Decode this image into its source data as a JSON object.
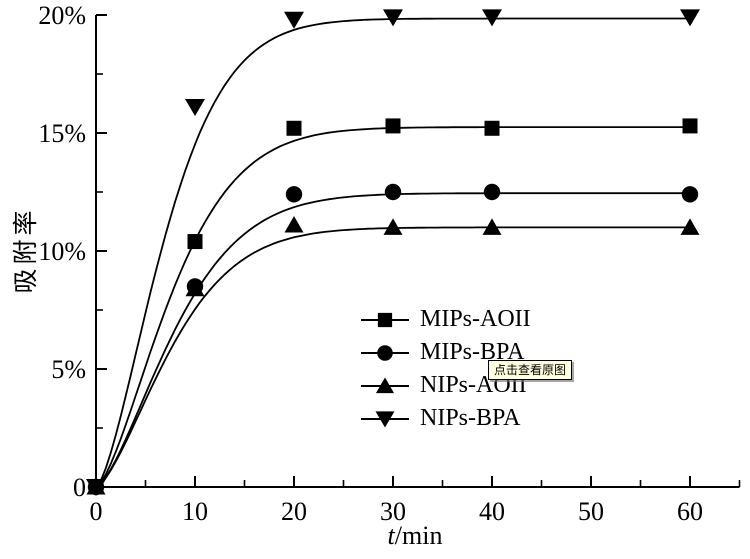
{
  "overlay": {
    "tooltip_text": "点击查看原图",
    "tooltip_bg": "#ffffe1"
  },
  "chart_data": {
    "type": "line",
    "title": "",
    "ylabel": "吸附率",
    "xlabel": "t/min",
    "xlabel_italic": "t",
    "xlabel_rest": "/min",
    "xlim": [
      0,
      65
    ],
    "ylim": [
      0,
      20
    ],
    "grid": false,
    "legend_position": "center-right",
    "line_color": "#000000",
    "background_color": "#ffffff",
    "x_major_ticks": [
      0,
      10,
      20,
      30,
      40,
      50,
      60
    ],
    "x_minor_ticks": [
      5,
      15,
      25,
      35,
      45,
      55,
      65
    ],
    "y_major_ticks": [
      {
        "v": 0,
        "label": "0"
      },
      {
        "v": 5,
        "label": "5%"
      },
      {
        "v": 10,
        "label": "10%"
      },
      {
        "v": 15,
        "label": "15%"
      },
      {
        "v": 20,
        "label": "20%"
      }
    ],
    "y_minor_ticks": [
      2.5,
      7.5,
      12.5,
      17.5
    ],
    "series": [
      {
        "name": "MIPs-AOII",
        "marker": "square",
        "x": [
          0,
          10,
          20,
          30,
          40,
          60
        ],
        "y": [
          0,
          10.4,
          15.2,
          15.3,
          15.2,
          15.3
        ],
        "curve": {
          "model": "A*(1-exp(-(k*t)^p))",
          "A": 15.25,
          "k": 0.11,
          "p": 1.5
        }
      },
      {
        "name": "MIPs-BPA",
        "marker": "circle",
        "x": [
          0,
          10,
          20,
          30,
          40,
          60
        ],
        "y": [
          0,
          8.5,
          12.4,
          12.5,
          12.5,
          12.4
        ],
        "curve": {
          "model": "A*(1-exp(-(k*t)^p))",
          "A": 12.45,
          "k": 0.105,
          "p": 1.5
        }
      },
      {
        "name": "NIPs-AOII",
        "marker": "triangle-up",
        "x": [
          0,
          10,
          20,
          30,
          40,
          60
        ],
        "y": [
          0,
          8.4,
          11.1,
          11.0,
          11.0,
          11.0
        ],
        "curve": {
          "model": "A*(1-exp(-(k*t)^p))",
          "A": 11.0,
          "k": 0.11,
          "p": 1.5
        }
      },
      {
        "name": "NIPs-BPA",
        "marker": "triangle-down",
        "x": [
          0,
          10,
          20,
          30,
          40,
          60
        ],
        "y": [
          0,
          16.1,
          19.8,
          19.9,
          19.9,
          19.9
        ],
        "curve": {
          "model": "A*(1-exp(-(k*t)^p))",
          "A": 19.85,
          "k": 0.12,
          "p": 1.5
        }
      }
    ]
  }
}
